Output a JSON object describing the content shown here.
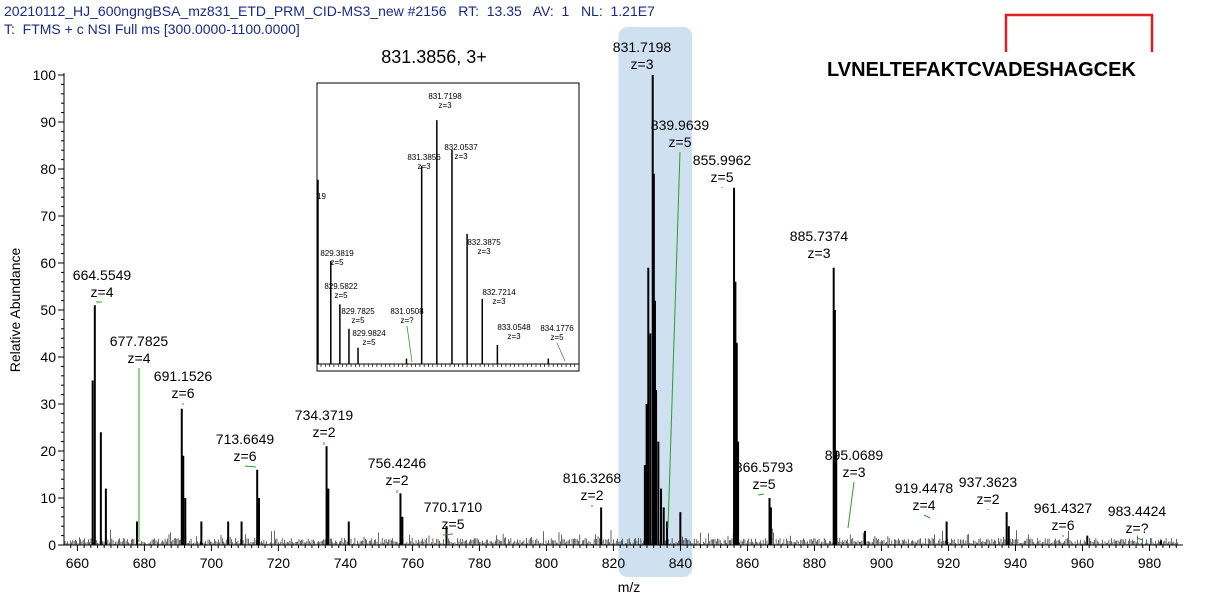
{
  "header": {
    "line1": "20210112_HJ_600ngngBSA_mz831_ETD_PRM_CID-MS3_new #2156   RT:  13.35   AV:  1   NL:  1.21E7",
    "line2": "T:  FTMS + c NSI Full ms [300.0000-1100.0000]"
  },
  "sequence": "LVNELTEFAKTCVADESHAGCEK",
  "colors": {
    "highlight": "#cfe0f0",
    "bracket": "#e02020",
    "leader": "#2aa02a",
    "text_header": "#1a2a8c"
  },
  "chart_data": {
    "type": "bar",
    "xlabel": "m/z",
    "ylabel": "Relative Abundance",
    "xlim": [
      656,
      990
    ],
    "ylim": [
      0,
      100
    ],
    "xticks": [
      660,
      680,
      700,
      720,
      740,
      760,
      780,
      800,
      820,
      840,
      860,
      880,
      900,
      920,
      940,
      960,
      980
    ],
    "yticks": [
      0,
      10,
      20,
      30,
      40,
      50,
      60,
      70,
      80,
      90,
      100
    ],
    "highlight_range": [
      821.5,
      843.5
    ],
    "peaks": [
      {
        "mz": 664.5549,
        "y": 35
      },
      {
        "mz": 665.2,
        "y": 51
      },
      {
        "mz": 667.0,
        "y": 24
      },
      {
        "mz": 668.5,
        "y": 12
      },
      {
        "mz": 677.7825,
        "y": 5
      },
      {
        "mz": 691.1526,
        "y": 29
      },
      {
        "mz": 691.6,
        "y": 19
      },
      {
        "mz": 692.2,
        "y": 10
      },
      {
        "mz": 697.0,
        "y": 5
      },
      {
        "mz": 705.0,
        "y": 5
      },
      {
        "mz": 709.0,
        "y": 5
      },
      {
        "mz": 713.6649,
        "y": 16
      },
      {
        "mz": 714.2,
        "y": 10
      },
      {
        "mz": 734.3719,
        "y": 21
      },
      {
        "mz": 734.9,
        "y": 12
      },
      {
        "mz": 741.0,
        "y": 5
      },
      {
        "mz": 756.4246,
        "y": 11
      },
      {
        "mz": 757.0,
        "y": 6
      },
      {
        "mz": 770.171,
        "y": 4
      },
      {
        "mz": 816.3268,
        "y": 8
      },
      {
        "mz": 829.3819,
        "y": 17
      },
      {
        "mz": 829.9,
        "y": 30
      },
      {
        "mz": 830.4,
        "y": 59
      },
      {
        "mz": 831.0,
        "y": 45
      },
      {
        "mz": 831.7198,
        "y": 100
      },
      {
        "mz": 832.0537,
        "y": 79
      },
      {
        "mz": 832.3875,
        "y": 52
      },
      {
        "mz": 832.7214,
        "y": 33
      },
      {
        "mz": 833.4,
        "y": 22
      },
      {
        "mz": 834.2,
        "y": 12
      },
      {
        "mz": 835.0,
        "y": 8
      },
      {
        "mz": 836.0,
        "y": 5
      },
      {
        "mz": 839.9639,
        "y": 7
      },
      {
        "mz": 855.9962,
        "y": 76
      },
      {
        "mz": 856.4,
        "y": 56
      },
      {
        "mz": 856.8,
        "y": 43
      },
      {
        "mz": 857.2,
        "y": 22
      },
      {
        "mz": 866.5793,
        "y": 10
      },
      {
        "mz": 867.0,
        "y": 8
      },
      {
        "mz": 885.7374,
        "y": 59
      },
      {
        "mz": 886.1,
        "y": 50
      },
      {
        "mz": 886.5,
        "y": 20
      },
      {
        "mz": 895.0689,
        "y": 3
      },
      {
        "mz": 919.4478,
        "y": 5
      },
      {
        "mz": 937.3623,
        "y": 7
      },
      {
        "mz": 938.0,
        "y": 4
      },
      {
        "mz": 961.4327,
        "y": 2
      },
      {
        "mz": 983.4424,
        "y": 1
      }
    ],
    "annotations": [
      {
        "mz_text": "664.5549",
        "z_text": "z=4"
      },
      {
        "mz_text": "677.7825",
        "z_text": "z=4"
      },
      {
        "mz_text": "691.1526",
        "z_text": "z=6"
      },
      {
        "mz_text": "713.6649",
        "z_text": "z=6"
      },
      {
        "mz_text": "734.3719",
        "z_text": "z=2"
      },
      {
        "mz_text": "756.4246",
        "z_text": "z=2"
      },
      {
        "mz_text": "770.1710",
        "z_text": "z=5"
      },
      {
        "mz_text": "816.3268",
        "z_text": "z=2"
      },
      {
        "mz_text": "831.7198",
        "z_text": "z=3"
      },
      {
        "mz_text": "839.9639",
        "z_text": "z=5"
      },
      {
        "mz_text": "855.9962",
        "z_text": "z=5"
      },
      {
        "mz_text": "866.5793",
        "z_text": "z=5"
      },
      {
        "mz_text": "885.7374",
        "z_text": "z=3"
      },
      {
        "mz_text": "895.0689",
        "z_text": "z=3"
      },
      {
        "mz_text": "919.4478",
        "z_text": "z=4"
      },
      {
        "mz_text": "937.3623",
        "z_text": "z=2"
      },
      {
        "mz_text": "961.4327",
        "z_text": "z=6"
      },
      {
        "mz_text": "983.4424",
        "z_text": "z=?"
      }
    ],
    "inset": {
      "title": "831.3856, 3+",
      "xlim": [
        829.1,
        834.7
      ],
      "ylim": [
        0,
        100
      ],
      "edge_label": "19",
      "peaks": [
        {
          "mz": 829.1,
          "y": 68
        },
        {
          "mz": 829.3819,
          "y": 38
        },
        {
          "mz": 829.5822,
          "y": 22
        },
        {
          "mz": 829.7825,
          "y": 13
        },
        {
          "mz": 829.9824,
          "y": 6
        },
        {
          "mz": 831.0508,
          "y": 2
        },
        {
          "mz": 831.3856,
          "y": 73
        },
        {
          "mz": 831.7198,
          "y": 90
        },
        {
          "mz": 832.0537,
          "y": 79
        },
        {
          "mz": 832.3875,
          "y": 48
        },
        {
          "mz": 832.7214,
          "y": 24
        },
        {
          "mz": 833.0548,
          "y": 7
        },
        {
          "mz": 834.1776,
          "y": 2
        }
      ],
      "annotations": [
        {
          "mz_text": "831.7198",
          "z_text": "z=3"
        },
        {
          "mz_text": "832.0537",
          "z_text": "z=3"
        },
        {
          "mz_text": "831.3856",
          "z_text": "z=3"
        },
        {
          "mz_text": "829.3819",
          "z_text": "z=5"
        },
        {
          "mz_text": "832.3875",
          "z_text": "z=3"
        },
        {
          "mz_text": "829.5822",
          "z_text": "z=5"
        },
        {
          "mz_text": "829.7825",
          "z_text": "z=5"
        },
        {
          "mz_text": "831.0508",
          "z_text": "z=?"
        },
        {
          "mz_text": "832.7214",
          "z_text": "z=3"
        },
        {
          "mz_text": "829.9824",
          "z_text": "z=5"
        },
        {
          "mz_text": "833.0548",
          "z_text": "z=3"
        },
        {
          "mz_text": "834.1776",
          "z_text": "z=5"
        }
      ]
    }
  }
}
